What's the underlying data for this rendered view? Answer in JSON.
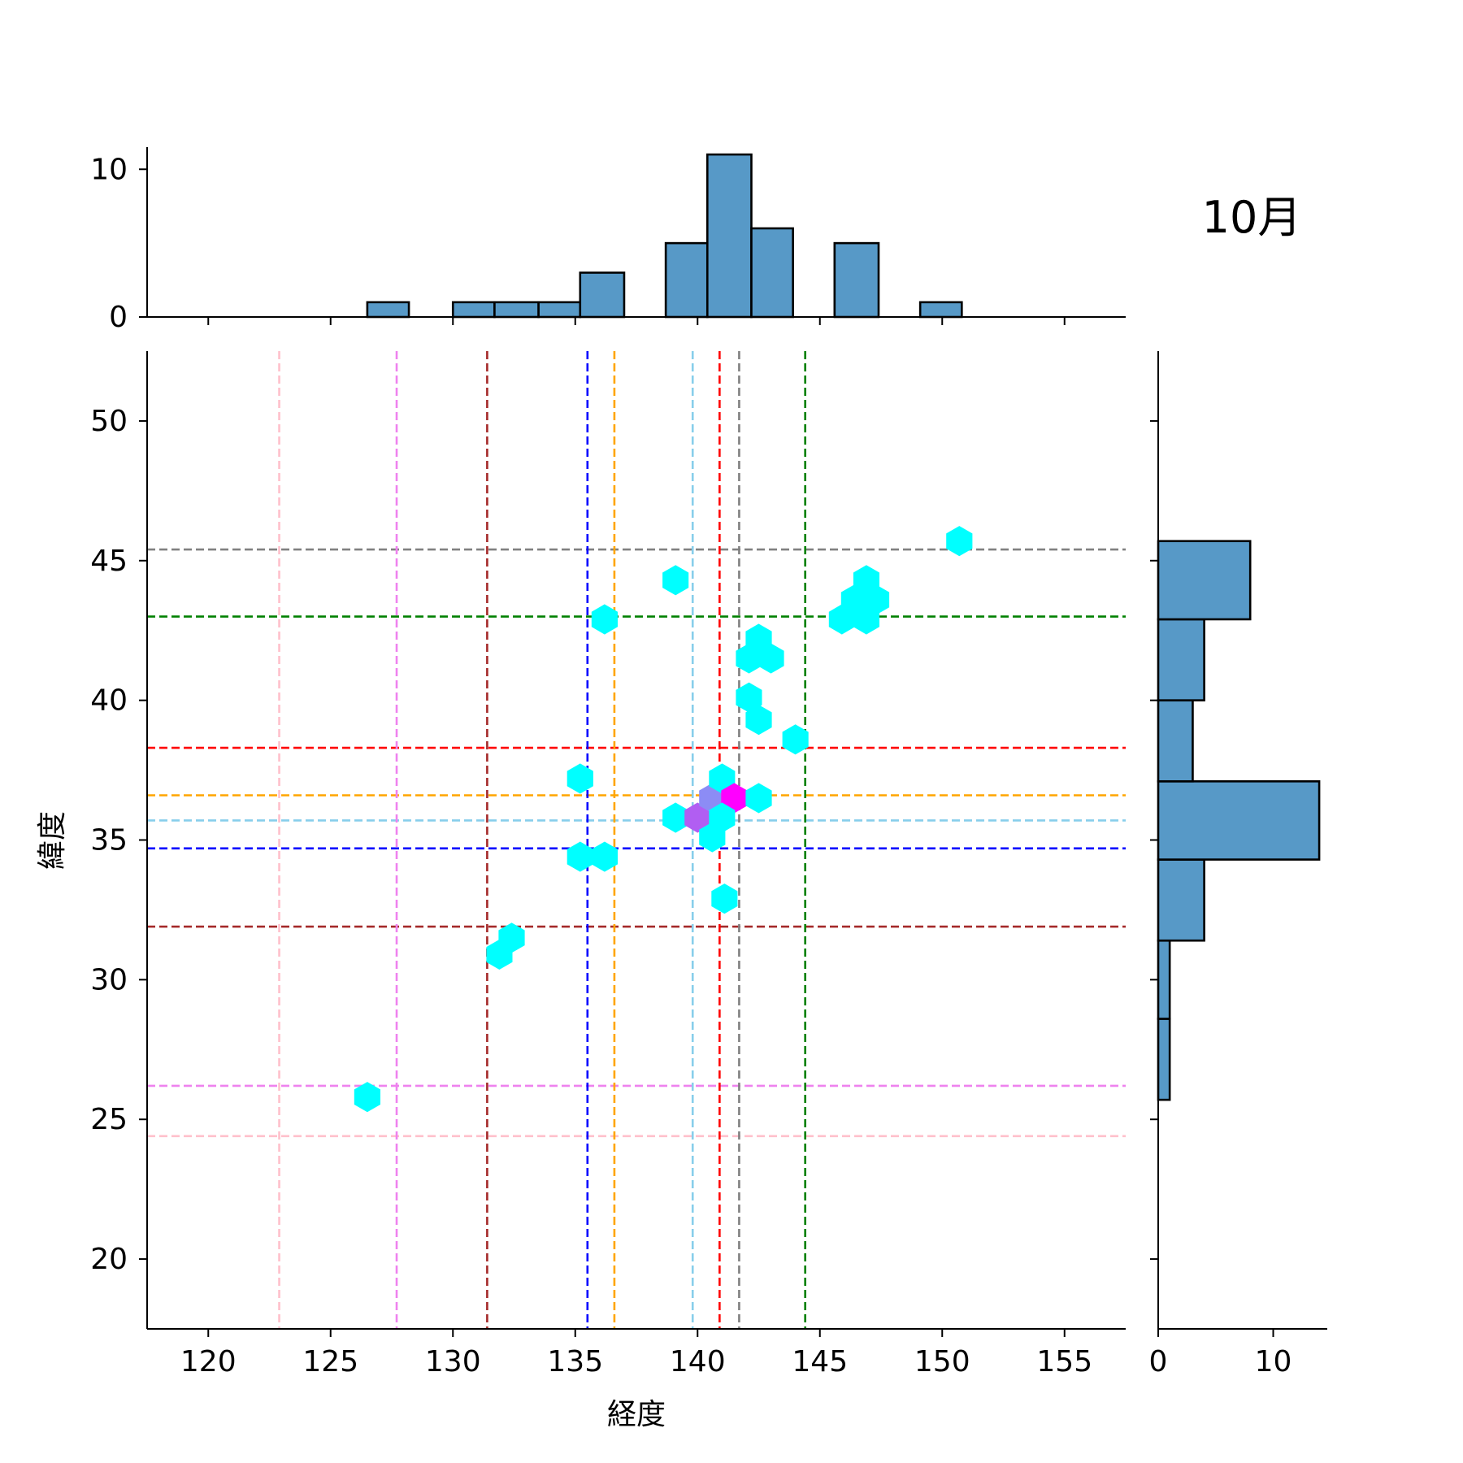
{
  "chart_data": {
    "type": "hexbin",
    "title": "10月",
    "xlabel": "経度",
    "ylabel": "緯度",
    "xlim": [
      117.5,
      157.5
    ],
    "ylim": [
      17.5,
      52.5
    ],
    "xticks": [
      "120",
      "125",
      "130",
      "135",
      "140",
      "145",
      "150",
      "155"
    ],
    "yticks": [
      "20",
      "25",
      "30",
      "35",
      "40",
      "45",
      "50"
    ],
    "top_hist_ticks": [
      "0",
      "10"
    ],
    "right_hist_ticks": [
      "0",
      "10"
    ],
    "points": [
      {
        "x": 126.5,
        "y": 25.8,
        "c": "#00ffff"
      },
      {
        "x": 131.9,
        "y": 30.9,
        "c": "#00ffff"
      },
      {
        "x": 132.4,
        "y": 31.5,
        "c": "#00ffff"
      },
      {
        "x": 135.2,
        "y": 37.2,
        "c": "#00ffff"
      },
      {
        "x": 135.2,
        "y": 34.4,
        "c": "#00ffff"
      },
      {
        "x": 136.2,
        "y": 34.4,
        "c": "#00ffff"
      },
      {
        "x": 136.2,
        "y": 42.9,
        "c": "#00ffff"
      },
      {
        "x": 139.1,
        "y": 44.3,
        "c": "#00ffff"
      },
      {
        "x": 139.1,
        "y": 35.8,
        "c": "#00ffff"
      },
      {
        "x": 140.0,
        "y": 35.8,
        "c": "#b15ef2"
      },
      {
        "x": 140.6,
        "y": 36.5,
        "c": "#8c8cf5"
      },
      {
        "x": 141.0,
        "y": 37.2,
        "c": "#00ffff"
      },
      {
        "x": 141.5,
        "y": 36.5,
        "c": "#ff00ff"
      },
      {
        "x": 140.6,
        "y": 35.1,
        "c": "#00ffff"
      },
      {
        "x": 141.0,
        "y": 35.8,
        "c": "#00ffff"
      },
      {
        "x": 141.1,
        "y": 32.9,
        "c": "#00ffff"
      },
      {
        "x": 142.1,
        "y": 40.1,
        "c": "#00ffff"
      },
      {
        "x": 142.1,
        "y": 41.5,
        "c": "#00ffff"
      },
      {
        "x": 142.5,
        "y": 42.2,
        "c": "#00ffff"
      },
      {
        "x": 143.0,
        "y": 41.5,
        "c": "#00ffff"
      },
      {
        "x": 142.5,
        "y": 39.3,
        "c": "#00ffff"
      },
      {
        "x": 142.5,
        "y": 36.5,
        "c": "#00ffff"
      },
      {
        "x": 144.0,
        "y": 38.6,
        "c": "#00ffff"
      },
      {
        "x": 145.9,
        "y": 42.9,
        "c": "#00ffff"
      },
      {
        "x": 146.4,
        "y": 43.6,
        "c": "#00ffff"
      },
      {
        "x": 146.9,
        "y": 44.3,
        "c": "#00ffff"
      },
      {
        "x": 146.9,
        "y": 42.9,
        "c": "#00ffff"
      },
      {
        "x": 147.3,
        "y": 43.6,
        "c": "#00ffff"
      },
      {
        "x": 150.7,
        "y": 45.7,
        "c": "#00ffff"
      }
    ],
    "vlines": [
      {
        "x": 122.9,
        "color": "#ffc0cb"
      },
      {
        "x": 127.7,
        "color": "#ee82ee"
      },
      {
        "x": 131.4,
        "color": "#a52a2a"
      },
      {
        "x": 135.5,
        "color": "#0000ff"
      },
      {
        "x": 136.6,
        "color": "#ffa500"
      },
      {
        "x": 139.8,
        "color": "#87ceeb"
      },
      {
        "x": 140.9,
        "color": "#ff0000"
      },
      {
        "x": 141.7,
        "color": "#808080"
      },
      {
        "x": 144.4,
        "color": "#008000"
      }
    ],
    "hlines": [
      {
        "y": 45.4,
        "color": "#808080"
      },
      {
        "y": 43.0,
        "color": "#008000"
      },
      {
        "y": 38.3,
        "color": "#ff0000"
      },
      {
        "y": 36.6,
        "color": "#ffa500"
      },
      {
        "y": 35.7,
        "color": "#87ceeb"
      },
      {
        "y": 34.7,
        "color": "#0000ff"
      },
      {
        "y": 31.9,
        "color": "#a52a2a"
      },
      {
        "y": 26.2,
        "color": "#ee82ee"
      },
      {
        "y": 24.4,
        "color": "#ffc0cb"
      }
    ],
    "top_hist": {
      "bins": [
        {
          "x0": 126.5,
          "x1": 128.2,
          "count": 1
        },
        {
          "x0": 130.0,
          "x1": 131.7,
          "count": 1
        },
        {
          "x0": 131.7,
          "x1": 133.5,
          "count": 1
        },
        {
          "x0": 133.5,
          "x1": 135.2,
          "count": 1
        },
        {
          "x0": 135.2,
          "x1": 137.0,
          "count": 3
        },
        {
          "x0": 138.7,
          "x1": 140.4,
          "count": 5
        },
        {
          "x0": 140.4,
          "x1": 142.2,
          "count": 11
        },
        {
          "x0": 142.2,
          "x1": 143.9,
          "count": 6
        },
        {
          "x0": 145.6,
          "x1": 147.4,
          "count": 5
        },
        {
          "x0": 149.1,
          "x1": 150.8,
          "count": 1
        }
      ],
      "ylim": [
        0,
        11.5
      ]
    },
    "right_hist": {
      "bins": [
        {
          "y0": 25.7,
          "y1": 28.6,
          "count": 1
        },
        {
          "y0": 28.6,
          "y1": 31.4,
          "count": 1
        },
        {
          "y0": 31.4,
          "y1": 34.3,
          "count": 4
        },
        {
          "y0": 34.3,
          "y1": 37.1,
          "count": 14
        },
        {
          "y0": 37.1,
          "y1": 40.0,
          "count": 3
        },
        {
          "y0": 40.0,
          "y1": 42.9,
          "count": 4
        },
        {
          "y0": 42.9,
          "y1": 45.7,
          "count": 8
        }
      ],
      "xlim": [
        0,
        14.7
      ]
    }
  }
}
